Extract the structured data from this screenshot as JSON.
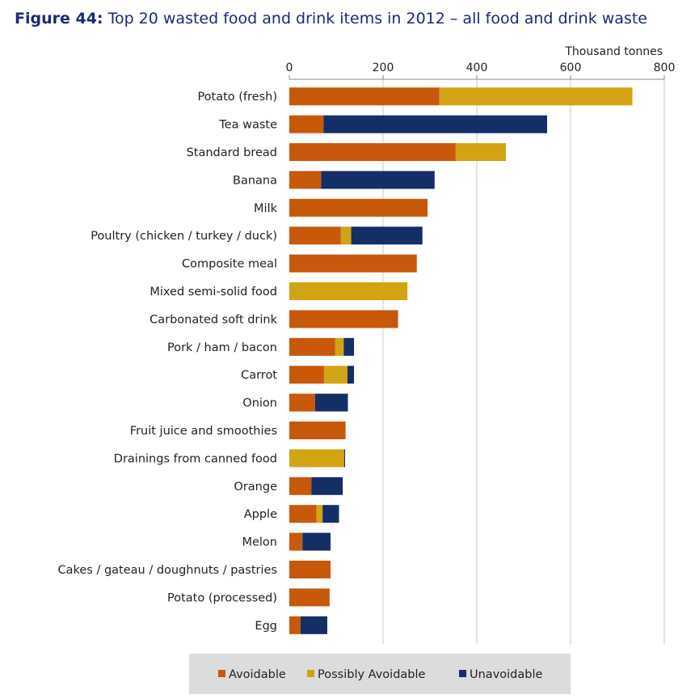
{
  "figure": {
    "number": "Figure 44:",
    "title": "Top 20 wasted food and drink items in 2012 – all food and drink waste"
  },
  "chart_data": {
    "type": "bar",
    "orientation": "horizontal",
    "stacked": true,
    "unit": "Thousand tonnes",
    "xlim": [
      0,
      800
    ],
    "xticks": [
      0,
      200,
      400,
      600,
      800
    ],
    "grid": true,
    "legend_position": "bottom",
    "categories": [
      "Potato (fresh)",
      "Tea waste",
      "Standard bread",
      "Banana",
      "Milk",
      "Poultry (chicken / turkey / duck)",
      "Composite meal",
      "Mixed semi-solid food",
      "Carbonated soft drink",
      "Pork / ham / bacon",
      "Carrot",
      "Onion",
      "Fruit juice and smoothies",
      "Drainings from canned food",
      "Orange",
      "Apple",
      "Melon",
      "Cakes / gateau / doughnuts / pastries",
      "Potato (processed)",
      "Egg"
    ],
    "series": [
      {
        "name": "Avoidable",
        "color": "#c8580a",
        "values": [
          320,
          73,
          355,
          68,
          295,
          110,
          272,
          0,
          232,
          98,
          74,
          55,
          120,
          0,
          47,
          58,
          28,
          88,
          86,
          24
        ]
      },
      {
        "name": "Possibly Avoidable",
        "color": "#d2a414",
        "values": [
          412,
          0,
          107,
          0,
          0,
          22,
          0,
          252,
          0,
          18,
          50,
          0,
          0,
          117,
          0,
          13,
          0,
          0,
          0,
          0
        ]
      },
      {
        "name": "Unavoidable",
        "color": "#132f66",
        "values": [
          0,
          477,
          0,
          242,
          0,
          152,
          0,
          0,
          0,
          22,
          14,
          70,
          0,
          2,
          67,
          35,
          60,
          0,
          0,
          57
        ]
      }
    ]
  }
}
